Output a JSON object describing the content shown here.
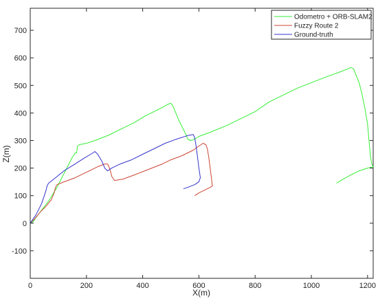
{
  "colors": {
    "odometro": "#33ee33",
    "fuzzy": "#cc4433",
    "ground_truth": "#3333cc",
    "axis": "#262626",
    "legend_border": "#262626"
  },
  "chart_data": {
    "type": "line",
    "title": "",
    "xlabel": "X(m)",
    "ylabel": "Z(m)",
    "xlim": [
      0,
      1220
    ],
    "ylim": [
      -200,
      780
    ],
    "grid": false,
    "legend_position": "top-right",
    "x_ticks": [
      0,
      200,
      400,
      600,
      800,
      1000,
      1200
    ],
    "y_ticks": [
      -100,
      0,
      100,
      200,
      300,
      400,
      500,
      600,
      700
    ],
    "series": [
      {
        "name": "Odometro + ORB-SLAM2",
        "color_key": "odometro",
        "points": [
          [
            0,
            0
          ],
          [
            10,
            5
          ],
          [
            20,
            20
          ],
          [
            35,
            40
          ],
          [
            50,
            60
          ],
          [
            65,
            80
          ],
          [
            80,
            105
          ],
          [
            95,
            130
          ],
          [
            110,
            160
          ],
          [
            130,
            200
          ],
          [
            150,
            240
          ],
          [
            160,
            255
          ],
          [
            165,
            255
          ],
          [
            168,
            280
          ],
          [
            175,
            285
          ],
          [
            200,
            290
          ],
          [
            230,
            300
          ],
          [
            280,
            320
          ],
          [
            320,
            340
          ],
          [
            370,
            365
          ],
          [
            410,
            390
          ],
          [
            440,
            405
          ],
          [
            470,
            420
          ],
          [
            490,
            432
          ],
          [
            500,
            435
          ],
          [
            505,
            430
          ],
          [
            510,
            420
          ],
          [
            520,
            395
          ],
          [
            530,
            370
          ],
          [
            545,
            340
          ],
          [
            555,
            320
          ],
          [
            560,
            305
          ],
          [
            570,
            300
          ],
          [
            585,
            305
          ],
          [
            600,
            315
          ],
          [
            640,
            330
          ],
          [
            700,
            355
          ],
          [
            750,
            380
          ],
          [
            800,
            405
          ],
          [
            850,
            440
          ],
          [
            900,
            465
          ],
          [
            950,
            490
          ],
          [
            1000,
            510
          ],
          [
            1050,
            530
          ],
          [
            1100,
            548
          ],
          [
            1130,
            560
          ],
          [
            1140,
            565
          ],
          [
            1150,
            560
          ],
          [
            1160,
            535
          ],
          [
            1170,
            510
          ],
          [
            1180,
            470
          ],
          [
            1190,
            420
          ],
          [
            1200,
            360
          ],
          [
            1205,
            300
          ],
          [
            1210,
            245
          ],
          [
            1215,
            215
          ],
          [
            1220,
            205
          ],
          [
            1200,
            200
          ],
          [
            1170,
            190
          ],
          [
            1140,
            175
          ],
          [
            1110,
            158
          ],
          [
            1090,
            145
          ]
        ]
      },
      {
        "name": "Fuzzy Route 2",
        "color_key": "fuzzy",
        "points": [
          [
            0,
            0
          ],
          [
            15,
            15
          ],
          [
            35,
            40
          ],
          [
            55,
            60
          ],
          [
            75,
            85
          ],
          [
            85,
            110
          ],
          [
            90,
            130
          ],
          [
            95,
            140
          ],
          [
            120,
            150
          ],
          [
            160,
            165
          ],
          [
            200,
            185
          ],
          [
            240,
            205
          ],
          [
            265,
            215
          ],
          [
            275,
            215
          ],
          [
            280,
            205
          ],
          [
            285,
            190
          ],
          [
            290,
            170
          ],
          [
            300,
            155
          ],
          [
            330,
            160
          ],
          [
            370,
            175
          ],
          [
            420,
            195
          ],
          [
            470,
            215
          ],
          [
            500,
            230
          ],
          [
            540,
            245
          ],
          [
            580,
            265
          ],
          [
            600,
            280
          ],
          [
            615,
            290
          ],
          [
            625,
            285
          ],
          [
            630,
            270
          ],
          [
            635,
            240
          ],
          [
            640,
            200
          ],
          [
            645,
            160
          ],
          [
            648,
            135
          ],
          [
            640,
            130
          ],
          [
            620,
            120
          ],
          [
            600,
            110
          ],
          [
            585,
            100
          ]
        ]
      },
      {
        "name": "Ground-truth",
        "color_key": "ground_truth",
        "points": [
          [
            0,
            0
          ],
          [
            20,
            30
          ],
          [
            40,
            70
          ],
          [
            55,
            115
          ],
          [
            60,
            135
          ],
          [
            65,
            145
          ],
          [
            90,
            165
          ],
          [
            120,
            190
          ],
          [
            160,
            215
          ],
          [
            190,
            235
          ],
          [
            215,
            250
          ],
          [
            230,
            260
          ],
          [
            240,
            250
          ],
          [
            255,
            225
          ],
          [
            265,
            200
          ],
          [
            275,
            190
          ],
          [
            290,
            200
          ],
          [
            320,
            215
          ],
          [
            360,
            230
          ],
          [
            400,
            250
          ],
          [
            440,
            270
          ],
          [
            480,
            290
          ],
          [
            520,
            305
          ],
          [
            560,
            318
          ],
          [
            580,
            322
          ],
          [
            585,
            310
          ],
          [
            590,
            280
          ],
          [
            595,
            240
          ],
          [
            600,
            200
          ],
          [
            605,
            165
          ],
          [
            600,
            150
          ],
          [
            585,
            140
          ],
          [
            560,
            130
          ],
          [
            545,
            125
          ]
        ]
      }
    ]
  }
}
